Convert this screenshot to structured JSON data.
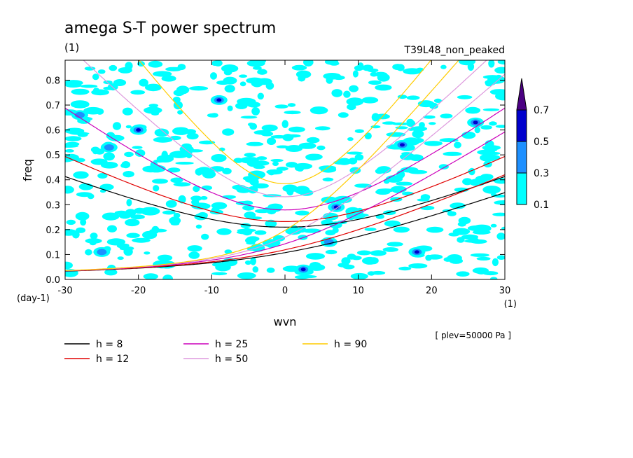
{
  "chart_data": {
    "type": "heatmap",
    "title": "amega S-T power spectrum",
    "subtitle": "(1)",
    "run_label": "T39L48_non_peaked",
    "xlabel": "wvn",
    "xunit": "(1)",
    "ylabel": "freq",
    "yunit": "(day-1)",
    "note": "[ plev=50000 Pa ]",
    "xlim": [
      -30,
      30
    ],
    "ylim": [
      0,
      0.88
    ],
    "xticks": [
      -30,
      -20,
      -10,
      0,
      10,
      20,
      30
    ],
    "xtick_labels": [
      "-30",
      "-20",
      "-10",
      "0",
      "10",
      "20",
      "30"
    ],
    "yticks": [
      0,
      0.1,
      0.2,
      0.3,
      0.4,
      0.5,
      0.6,
      0.7,
      0.8
    ],
    "ytick_labels": [
      "0.0",
      "0.1",
      "0.2",
      "0.3",
      "0.4",
      "0.5",
      "0.6",
      "0.7",
      "0.8"
    ],
    "colorbar": {
      "levels": [
        0.1,
        0.3,
        0.5,
        0.7
      ],
      "labels": [
        "0.1",
        "0.3",
        "0.5",
        "0.7"
      ],
      "colors": [
        "#00ffff",
        "#1e90ff",
        "#0000cd",
        "#4b0082"
      ]
    },
    "dispersion_curves": [
      {
        "label": "h =  8",
        "h": 8,
        "color": "#000000",
        "legend_text": "h =  8"
      },
      {
        "label": "h = 12",
        "h": 12,
        "color": "#e00000",
        "legend_text": "h = 12"
      },
      {
        "label": "h = 25",
        "h": 25,
        "color": "#cc00bb",
        "legend_text": "h = 25"
      },
      {
        "label": "h = 50",
        "h": 50,
        "color": "#dd99dd",
        "legend_text": "h = 50"
      },
      {
        "label": "h = 90",
        "h": 90,
        "color": "#ffcc00",
        "legend_text": "h = 90"
      }
    ],
    "intense_spots": [
      {
        "x": 2.5,
        "y": 0.04,
        "level": 0.5
      },
      {
        "x": 7,
        "y": 0.29,
        "level": 0.5
      },
      {
        "x": -9,
        "y": 0.72,
        "level": 0.5
      },
      {
        "x": 18,
        "y": 0.11,
        "level": 0.5
      },
      {
        "x": 26,
        "y": 0.63,
        "level": 0.5
      },
      {
        "x": -20,
        "y": 0.6,
        "level": 0.5
      },
      {
        "x": 16,
        "y": 0.54,
        "level": 0.5
      },
      {
        "x": -24,
        "y": 0.53,
        "level": 0.3
      },
      {
        "x": -28,
        "y": 0.66,
        "level": 0.3
      },
      {
        "x": 6,
        "y": 0.15,
        "level": 0.3
      },
      {
        "x": -25,
        "y": 0.11,
        "level": 0.3
      }
    ]
  }
}
